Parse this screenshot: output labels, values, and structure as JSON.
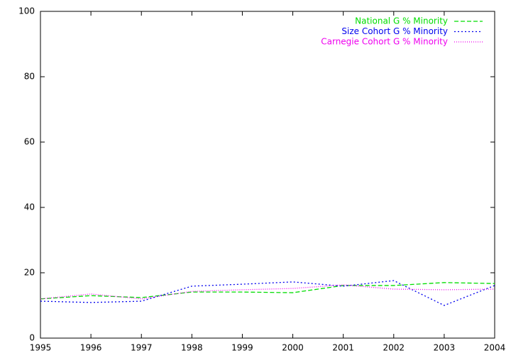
{
  "chart_data": {
    "type": "line",
    "x": [
      1995,
      1996,
      1997,
      1998,
      1999,
      2000,
      2001,
      2002,
      2003,
      2004
    ],
    "series": [
      {
        "name": "National G % Minority",
        "color": "#00dd00",
        "dash": "6,3",
        "values": [
          12.0,
          13.0,
          12.4,
          14.1,
          14.1,
          13.9,
          16.1,
          16.1,
          17.0,
          16.7
        ]
      },
      {
        "name": "Size Cohort G % Minority",
        "color": "#0000ee",
        "dash": "2,3",
        "values": [
          11.3,
          10.9,
          11.3,
          15.9,
          16.5,
          17.2,
          15.9,
          17.6,
          10.0,
          16.1
        ]
      },
      {
        "name": "Carnegie Cohort G % Minority",
        "color": "#ee00ee",
        "dash": "1,2",
        "values": [
          12.0,
          13.5,
          12.0,
          14.3,
          14.8,
          15.2,
          16.3,
          15.0,
          14.8,
          15.0
        ]
      }
    ],
    "xlim": [
      1995,
      2004
    ],
    "xticks": [
      1995,
      1996,
      1997,
      1998,
      1999,
      2000,
      2001,
      2002,
      2003,
      2004
    ],
    "ylim": [
      0,
      100
    ],
    "yticks": [
      0,
      20,
      40,
      60,
      80,
      100
    ],
    "legend": "top-right"
  }
}
